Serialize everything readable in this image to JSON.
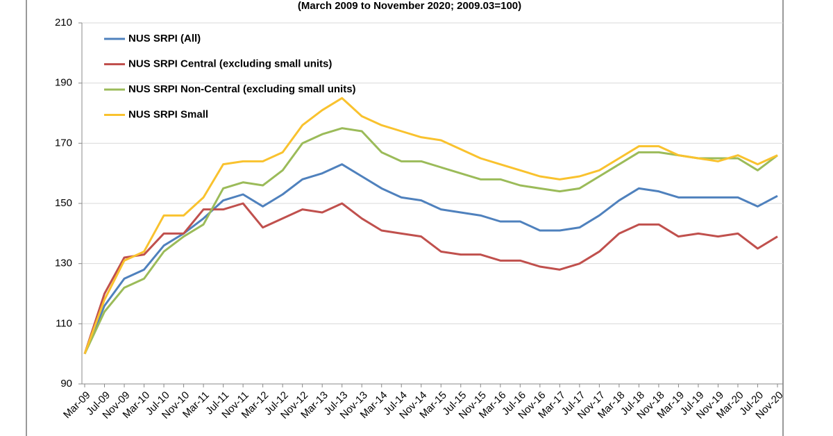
{
  "chart_data": {
    "type": "line",
    "subtitle": "(March 2009 to November 2020; 2009.03=100)",
    "categories": [
      "Mar-09",
      "Jul-09",
      "Nov-09",
      "Mar-10",
      "Jul-10",
      "Nov-10",
      "Mar-11",
      "Jul-11",
      "Nov-11",
      "Mar-12",
      "Jul-12",
      "Nov-12",
      "Mar-13",
      "Jul-13",
      "Nov-13",
      "Mar-14",
      "Jul-14",
      "Nov-14",
      "Mar-15",
      "Jul-15",
      "Nov-15",
      "Mar-16",
      "Jul-16",
      "Nov-16",
      "Mar-17",
      "Jul-17",
      "Nov-17",
      "Mar-18",
      "Jul-18",
      "Nov-18",
      "Mar-19",
      "Jul-19",
      "Nov-19",
      "Mar-20",
      "Jul-20",
      "Nov-20"
    ],
    "series": [
      {
        "name": "NUS SRPI (All)",
        "color": "#4f81bd",
        "values": [
          100,
          116,
          125,
          128,
          136,
          140,
          145,
          151,
          153,
          149,
          153,
          158,
          160,
          163,
          159,
          155,
          152,
          151,
          148,
          147,
          146,
          144,
          144,
          141,
          141,
          142,
          146,
          151,
          155,
          154,
          152,
          152,
          152,
          152,
          149,
          152.5
        ]
      },
      {
        "name": "NUS SRPI Central (excluding small units)",
        "color": "#c0504d",
        "values": [
          100,
          120,
          132,
          133,
          140,
          140,
          148,
          148,
          150,
          142,
          145,
          148,
          147,
          150,
          145,
          141,
          140,
          139,
          134,
          133,
          133,
          131,
          131,
          129,
          128,
          130,
          134,
          140,
          143,
          143,
          139,
          140,
          139,
          140,
          135,
          139
        ]
      },
      {
        "name": "NUS SRPI Non-Central (excluding small units)",
        "color": "#9bbb59",
        "values": [
          100,
          114,
          122,
          125,
          134,
          139,
          143,
          155,
          157,
          156,
          161,
          170,
          173,
          175,
          174,
          167,
          164,
          164,
          162,
          160,
          158,
          158,
          156,
          155,
          154,
          155,
          159,
          163,
          167,
          167,
          166,
          165,
          165,
          165,
          161,
          166
        ]
      },
      {
        "name": "NUS SRPI Small",
        "color": "#f9c22e",
        "values": [
          100,
          118,
          131,
          134,
          146,
          146,
          152,
          163,
          164,
          164,
          167,
          176,
          181,
          185,
          179,
          176,
          174,
          172,
          171,
          168,
          165,
          163,
          161,
          159,
          158,
          159,
          161,
          165,
          169,
          169,
          166,
          165,
          164,
          166,
          163,
          166
        ]
      }
    ],
    "ylim": [
      90,
      210
    ],
    "yticks": [
      90,
      110,
      130,
      150,
      170,
      190,
      210
    ],
    "grid": true,
    "legend": "upper-left"
  }
}
